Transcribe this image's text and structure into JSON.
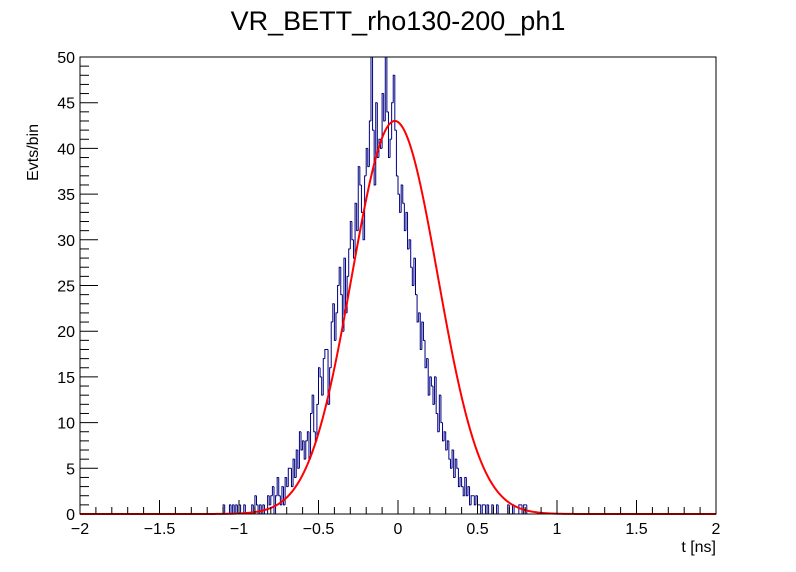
{
  "chart_data": {
    "type": "histogram",
    "title": "VR_BETT_rho130-200_ph1",
    "xlabel": "t [ns]",
    "ylabel": "Evts/bin",
    "xlim": [
      -2,
      2
    ],
    "ylim": [
      0,
      50
    ],
    "x_ticks": [
      -2,
      -1.5,
      -1,
      -0.5,
      0,
      0.5,
      1,
      1.5,
      2
    ],
    "x_tick_labels": [
      "−2",
      "−1.5",
      "−1",
      "−0.5",
      "0",
      "0.5",
      "1",
      "1.5",
      "2"
    ],
    "y_ticks": [
      0,
      5,
      10,
      15,
      20,
      25,
      30,
      35,
      40,
      45,
      50
    ],
    "y_tick_labels": [
      "0",
      "5",
      "10",
      "15",
      "20",
      "25",
      "30",
      "35",
      "40",
      "45",
      "50"
    ],
    "bin_width": 0.01,
    "histogram": {
      "name": "data",
      "color": "#000080",
      "bin_start": -1.1,
      "counts": [
        1,
        0,
        0,
        0,
        1,
        0,
        1,
        0,
        1,
        0,
        1,
        0,
        0,
        1,
        0,
        0,
        0,
        0,
        1,
        0,
        2,
        1,
        0,
        1,
        0,
        1,
        0,
        0,
        2,
        1,
        2,
        3,
        0,
        2,
        4,
        2,
        1,
        3,
        1,
        4,
        3,
        5,
        5,
        3,
        6,
        4,
        7,
        5,
        9,
        7,
        8,
        6,
        8,
        9,
        6,
        11,
        13,
        9,
        8,
        12,
        16,
        15,
        13,
        17,
        18,
        18,
        12,
        16,
        21,
        23,
        19,
        22,
        25,
        27,
        24,
        20,
        28,
        22,
        26,
        29,
        32,
        30,
        28,
        34,
        31,
        38,
        36,
        33,
        30,
        37,
        40,
        38,
        43,
        50,
        42,
        36,
        45,
        39,
        41,
        40,
        46,
        43,
        50,
        44,
        39,
        41,
        45,
        48,
        42,
        37,
        35,
        33,
        36,
        34,
        31,
        33,
        29,
        30,
        27,
        25,
        28,
        24,
        21,
        22,
        18,
        21,
        19,
        16,
        17,
        13,
        15,
        14,
        12,
        15,
        11,
        9,
        13,
        10,
        8,
        9,
        7,
        8,
        6,
        5,
        7,
        4,
        6,
        5,
        3,
        4,
        3,
        2,
        4,
        2,
        3,
        1,
        2,
        2,
        1,
        2,
        1,
        1,
        0,
        1,
        1,
        0,
        1,
        0,
        0,
        1,
        0,
        0,
        1,
        0,
        0,
        0,
        0,
        0,
        0,
        1,
        0,
        0,
        1,
        0,
        0,
        0,
        1,
        1,
        0,
        1,
        1
      ]
    },
    "fit": {
      "name": "gaussian fit",
      "function": "gaussian",
      "color": "#ff0000",
      "amplitude": 43,
      "mean": -0.02,
      "sigma": 0.27
    }
  }
}
